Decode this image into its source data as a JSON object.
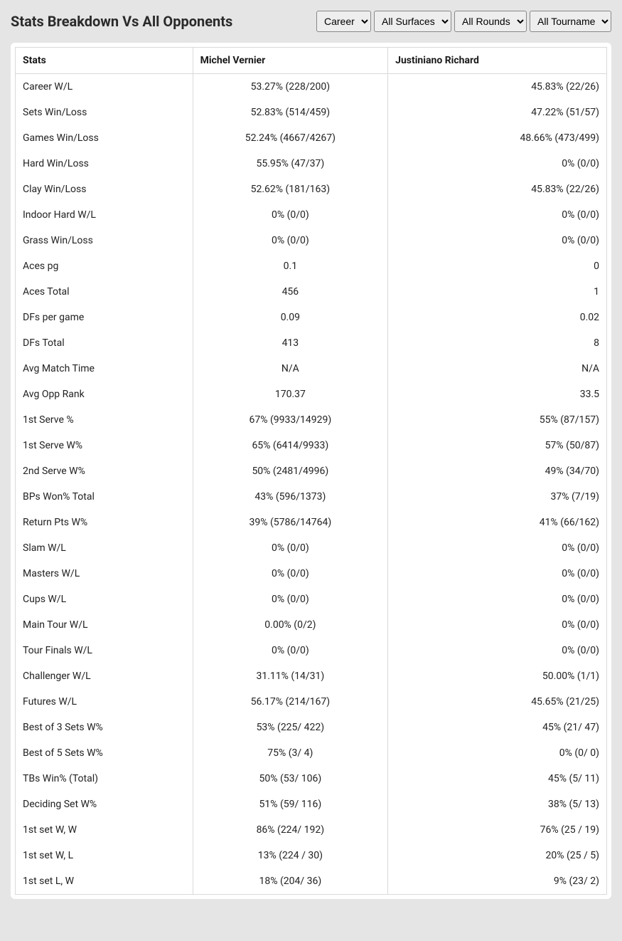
{
  "title": "Stats Breakdown Vs All Opponents",
  "filters": {
    "career": {
      "selected": "Career",
      "options": [
        "Career"
      ]
    },
    "surface": {
      "selected": "All Surfaces",
      "options": [
        "All Surfaces"
      ]
    },
    "rounds": {
      "selected": "All Rounds",
      "options": [
        "All Rounds"
      ]
    },
    "tournaments": {
      "selected": "All Tournaments",
      "options": [
        "All Tournaments"
      ]
    }
  },
  "columns": {
    "stats": "Stats",
    "player1": "Michel Vernier",
    "player2": "Justiniano Richard"
  },
  "rows": [
    {
      "label": "Career W/L",
      "p1": "53.27% (228/200)",
      "p2": "45.83% (22/26)"
    },
    {
      "label": "Sets Win/Loss",
      "p1": "52.83% (514/459)",
      "p2": "47.22% (51/57)"
    },
    {
      "label": "Games Win/Loss",
      "p1": "52.24% (4667/4267)",
      "p2": "48.66% (473/499)"
    },
    {
      "label": "Hard Win/Loss",
      "p1": "55.95% (47/37)",
      "p2": "0% (0/0)"
    },
    {
      "label": "Clay Win/Loss",
      "p1": "52.62% (181/163)",
      "p2": "45.83% (22/26)"
    },
    {
      "label": "Indoor Hard W/L",
      "p1": "0% (0/0)",
      "p2": "0% (0/0)"
    },
    {
      "label": "Grass Win/Loss",
      "p1": "0% (0/0)",
      "p2": "0% (0/0)"
    },
    {
      "label": "Aces pg",
      "p1": "0.1",
      "p2": "0"
    },
    {
      "label": "Aces Total",
      "p1": "456",
      "p2": "1"
    },
    {
      "label": "DFs per game",
      "p1": "0.09",
      "p2": "0.02"
    },
    {
      "label": "DFs Total",
      "p1": "413",
      "p2": "8"
    },
    {
      "label": "Avg Match Time",
      "p1": "N/A",
      "p2": "N/A"
    },
    {
      "label": "Avg Opp Rank",
      "p1": "170.37",
      "p2": "33.5"
    },
    {
      "label": "1st Serve %",
      "p1": "67% (9933/14929)",
      "p2": "55% (87/157)"
    },
    {
      "label": "1st Serve W%",
      "p1": "65% (6414/9933)",
      "p2": "57% (50/87)"
    },
    {
      "label": "2nd Serve W%",
      "p1": "50% (2481/4996)",
      "p2": "49% (34/70)"
    },
    {
      "label": "BPs Won% Total",
      "p1": "43% (596/1373)",
      "p2": "37% (7/19)"
    },
    {
      "label": "Return Pts W%",
      "p1": "39% (5786/14764)",
      "p2": "41% (66/162)"
    },
    {
      "label": "Slam W/L",
      "p1": "0% (0/0)",
      "p2": "0% (0/0)"
    },
    {
      "label": "Masters W/L",
      "p1": "0% (0/0)",
      "p2": "0% (0/0)"
    },
    {
      "label": "Cups W/L",
      "p1": "0% (0/0)",
      "p2": "0% (0/0)"
    },
    {
      "label": "Main Tour W/L",
      "p1": "0.00% (0/2)",
      "p2": "0% (0/0)"
    },
    {
      "label": "Tour Finals W/L",
      "p1": "0% (0/0)",
      "p2": "0% (0/0)"
    },
    {
      "label": "Challenger W/L",
      "p1": "31.11% (14/31)",
      "p2": "50.00% (1/1)"
    },
    {
      "label": "Futures W/L",
      "p1": "56.17% (214/167)",
      "p2": "45.65% (21/25)"
    },
    {
      "label": "Best of 3 Sets W%",
      "p1": "53% (225/ 422)",
      "p2": "45% (21/ 47)"
    },
    {
      "label": "Best of 5 Sets W%",
      "p1": "75% (3/ 4)",
      "p2": "0% (0/ 0)"
    },
    {
      "label": "TBs Win% (Total)",
      "p1": "50% (53/ 106)",
      "p2": "45% (5/ 11)"
    },
    {
      "label": "Deciding Set W%",
      "p1": "51% (59/ 116)",
      "p2": "38% (5/ 13)"
    },
    {
      "label": "1st set W, W",
      "p1": "86% (224/ 192)",
      "p2": "76% (25 / 19)"
    },
    {
      "label": "1st set W, L",
      "p1": "13% (224 / 30)",
      "p2": "20% (25 / 5)"
    },
    {
      "label": "1st set L, W",
      "p1": "18% (204/ 36)",
      "p2": "9% (23/ 2)"
    }
  ],
  "colors": {
    "page_bg": "#e5e5e5",
    "card_bg": "#ffffff",
    "border": "#d9d9d9",
    "text": "#222222"
  }
}
